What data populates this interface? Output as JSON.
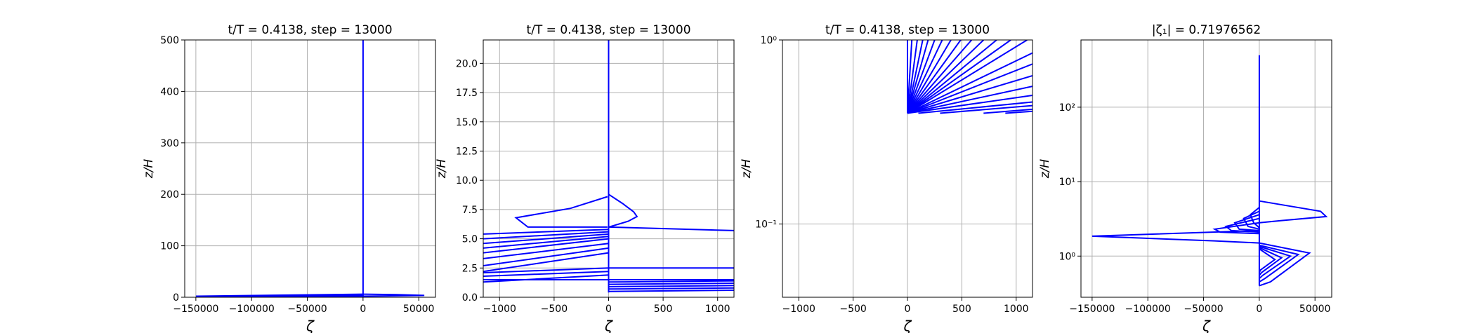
{
  "figure": {
    "background": "#ffffff",
    "line_color": "#0000ff",
    "grid_color": "#b0b0b0"
  },
  "chart_data": [
    {
      "type": "line",
      "title": "t/T = 0.4138, step = 13000",
      "xlabel": "ζ",
      "ylabel": "z/H",
      "xscale": "linear",
      "yscale": "linear",
      "xlim": [
        -160000,
        65000
      ],
      "ylim": [
        0,
        500
      ],
      "xticks": [
        -150000,
        -100000,
        -50000,
        0,
        50000
      ],
      "xtick_labels": [
        "−150000",
        "−100000",
        "−50000",
        "0",
        "50000"
      ],
      "yticks": [
        0,
        100,
        200,
        300,
        400,
        500
      ],
      "ytick_labels": [
        "0",
        "100",
        "200",
        "300",
        "400",
        "500"
      ],
      "grid": true,
      "series": [
        {
          "x": [
            0,
            0,
            0,
            0,
            0
          ],
          "y": [
            500,
            300,
            100,
            10,
            0.4
          ]
        },
        {
          "x": [
            0,
            -150000,
            -20000,
            0
          ],
          "y": [
            6,
            2.1,
            1.6,
            0.4
          ]
        },
        {
          "x": [
            0,
            30000,
            55000,
            0,
            0
          ],
          "y": [
            6,
            5.2,
            3.6,
            2.0,
            0.4
          ]
        },
        {
          "x": [
            0,
            -60000,
            0
          ],
          "y": [
            4,
            2.5,
            1.2
          ]
        }
      ]
    },
    {
      "type": "line",
      "title": "t/T = 0.4138, step = 13000",
      "xlabel": "ζ",
      "ylabel": "z/H",
      "xscale": "linear",
      "yscale": "linear",
      "xlim": [
        -1150,
        1150
      ],
      "ylim": [
        0,
        22
      ],
      "xticks": [
        -1000,
        -500,
        0,
        500,
        1000
      ],
      "xtick_labels": [
        "−1000",
        "−500",
        "0",
        "500",
        "1000"
      ],
      "yticks": [
        0,
        2.5,
        5,
        7.5,
        10,
        12.5,
        15,
        17.5,
        20
      ],
      "ytick_labels": [
        "0.0",
        "2.5",
        "5.0",
        "7.5",
        "10.0",
        "12.5",
        "15.0",
        "17.5",
        "20.0"
      ],
      "grid": true,
      "series": [
        {
          "x": [
            0,
            0,
            0,
            0,
            0,
            0
          ],
          "y": [
            22,
            15,
            10.5,
            8.6,
            6.0,
            0.4
          ]
        },
        {
          "x": [
            -10,
            -350,
            -850,
            -740,
            -10
          ],
          "y": [
            8.6,
            7.6,
            6.8,
            6.0,
            6.0
          ]
        },
        {
          "x": [
            0,
            130,
            230,
            260,
            180,
            0
          ],
          "y": [
            8.8,
            8.0,
            7.3,
            6.9,
            6.5,
            6.0
          ]
        },
        {
          "x": [
            0,
            1150
          ],
          "y": [
            6.0,
            5.7
          ]
        },
        {
          "x": [
            0,
            -1150
          ],
          "y": [
            5.8,
            5.4
          ]
        },
        {
          "x": [
            0,
            -1150
          ],
          "y": [
            5.6,
            5.0
          ]
        },
        {
          "x": [
            0,
            -1150
          ],
          "y": [
            5.4,
            4.6
          ]
        },
        {
          "x": [
            0,
            -1150
          ],
          "y": [
            5.2,
            4.2
          ]
        },
        {
          "x": [
            0,
            -1150
          ],
          "y": [
            5.0,
            3.8
          ]
        },
        {
          "x": [
            0,
            -1150
          ],
          "y": [
            4.6,
            3.3
          ]
        },
        {
          "x": [
            0,
            -1150
          ],
          "y": [
            4.2,
            2.7
          ]
        },
        {
          "x": [
            0,
            -1150
          ],
          "y": [
            3.8,
            2.2
          ]
        },
        {
          "x": [
            0,
            1150
          ],
          "y": [
            2.5,
            2.5
          ]
        },
        {
          "x": [
            0,
            -1150
          ],
          "y": [
            2.5,
            2.1
          ]
        },
        {
          "x": [
            0,
            -1150
          ],
          "y": [
            2.2,
            1.8
          ]
        },
        {
          "x": [
            -1150,
            0,
            1150
          ],
          "y": [
            1.5,
            1.5,
            1.5
          ]
        },
        {
          "x": [
            0,
            -1150
          ],
          "y": [
            1.9,
            1.3
          ]
        },
        {
          "x": [
            0,
            1150
          ],
          "y": [
            1.3,
            1.4
          ]
        },
        {
          "x": [
            0,
            1150
          ],
          "y": [
            1.1,
            1.2
          ]
        },
        {
          "x": [
            0,
            1150
          ],
          "y": [
            0.9,
            1.0
          ]
        },
        {
          "x": [
            0,
            1150
          ],
          "y": [
            0.7,
            0.8
          ]
        },
        {
          "x": [
            0,
            1150
          ],
          "y": [
            0.5,
            0.6
          ]
        }
      ]
    },
    {
      "type": "line",
      "title": "t/T = 0.4138, step = 13000",
      "xlabel": "ζ",
      "ylabel": "z/H",
      "xscale": "linear",
      "yscale": "log",
      "xlim": [
        -1150,
        1150
      ],
      "ylim": [
        0.04,
        1.0
      ],
      "xticks": [
        -1000,
        -500,
        0,
        500,
        1000
      ],
      "xtick_labels": [
        "−1000",
        "−500",
        "0",
        "500",
        "1000"
      ],
      "yticks": [
        0.1,
        1.0
      ],
      "ytick_labels": [
        "10⁻¹",
        "10⁰"
      ],
      "grid": true,
      "series": [
        {
          "x": [
            0,
            0
          ],
          "y": [
            0.4,
            1.0
          ]
        },
        {
          "x": [
            0,
            40
          ],
          "y": [
            0.4,
            1.0
          ]
        },
        {
          "x": [
            0,
            90
          ],
          "y": [
            0.4,
            1.0
          ]
        },
        {
          "x": [
            0,
            140
          ],
          "y": [
            0.4,
            1.0
          ]
        },
        {
          "x": [
            0,
            190
          ],
          "y": [
            0.4,
            1.0
          ]
        },
        {
          "x": [
            0,
            250
          ],
          "y": [
            0.4,
            1.0
          ]
        },
        {
          "x": [
            0,
            320
          ],
          "y": [
            0.4,
            1.0
          ]
        },
        {
          "x": [
            0,
            400
          ],
          "y": [
            0.4,
            1.0
          ]
        },
        {
          "x": [
            0,
            490
          ],
          "y": [
            0.4,
            1.0
          ]
        },
        {
          "x": [
            0,
            590
          ],
          "y": [
            0.4,
            1.0
          ]
        },
        {
          "x": [
            0,
            700
          ],
          "y": [
            0.4,
            1.0
          ]
        },
        {
          "x": [
            0,
            820
          ],
          "y": [
            0.4,
            1.0
          ]
        },
        {
          "x": [
            0,
            950
          ],
          "y": [
            0.4,
            1.0
          ]
        },
        {
          "x": [
            0,
            1100
          ],
          "y": [
            0.4,
            1.0
          ]
        },
        {
          "x": [
            0,
            1150
          ],
          "y": [
            0.4,
            0.85
          ]
        },
        {
          "x": [
            0,
            1150
          ],
          "y": [
            0.4,
            0.74
          ]
        },
        {
          "x": [
            0,
            1150
          ],
          "y": [
            0.4,
            0.64
          ]
        },
        {
          "x": [
            0,
            1150
          ],
          "y": [
            0.4,
            0.56
          ]
        },
        {
          "x": [
            0,
            1150
          ],
          "y": [
            0.4,
            0.5
          ]
        },
        {
          "x": [
            100,
            1150
          ],
          "y": [
            0.4,
            0.46
          ]
        },
        {
          "x": [
            300,
            1150
          ],
          "y": [
            0.4,
            0.44
          ]
        },
        {
          "x": [
            700,
            1150
          ],
          "y": [
            0.4,
            0.42
          ]
        },
        {
          "x": [
            900,
            1150
          ],
          "y": [
            0.4,
            0.41
          ]
        }
      ]
    },
    {
      "type": "line",
      "title": "|ζ₁| = 0.71976562",
      "xlabel": "ζ",
      "ylabel": "z/H",
      "xscale": "linear",
      "yscale": "log",
      "xlim": [
        -160000,
        65000
      ],
      "ylim": [
        0.28,
        800
      ],
      "xticks": [
        -150000,
        -100000,
        -50000,
        0,
        50000
      ],
      "xtick_labels": [
        "−150000",
        "−100000",
        "−50000",
        "0",
        "50000"
      ],
      "yticks": [
        1,
        10,
        100
      ],
      "ytick_labels": [
        "10⁰",
        "10¹",
        "10²"
      ],
      "grid": true,
      "series": [
        {
          "x": [
            0,
            0,
            0,
            0,
            0
          ],
          "y": [
            500,
            50,
            10,
            6,
            0.4
          ]
        },
        {
          "x": [
            0,
            -150000,
            -40000,
            0
          ],
          "y": [
            2.2,
            1.85,
            1.6,
            1.5
          ]
        },
        {
          "x": [
            0,
            55000,
            60000,
            20000,
            0
          ],
          "y": [
            5.5,
            4.0,
            3.4,
            3.0,
            2.8
          ]
        },
        {
          "x": [
            0,
            45000,
            10000,
            0
          ],
          "y": [
            1.5,
            1.1,
            0.45,
            0.4
          ]
        },
        {
          "x": [
            0,
            -40000,
            -35000,
            0
          ],
          "y": [
            2.8,
            2.3,
            2.1,
            2.0
          ]
        },
        {
          "x": [
            0,
            -30000,
            -25000,
            0
          ],
          "y": [
            3.2,
            2.5,
            2.2,
            2.1
          ]
        },
        {
          "x": [
            0,
            -22000,
            -18000,
            0
          ],
          "y": [
            3.6,
            2.8,
            2.3,
            2.2
          ]
        },
        {
          "x": [
            0,
            -14000,
            -10000,
            0
          ],
          "y": [
            4.0,
            3.2,
            2.5,
            2.3
          ]
        },
        {
          "x": [
            0,
            -8000,
            -5000,
            0
          ],
          "y": [
            4.5,
            3.6,
            2.8,
            2.4
          ]
        },
        {
          "x": [
            0,
            35000,
            5000,
            0
          ],
          "y": [
            1.4,
            1.05,
            0.5,
            0.45
          ]
        },
        {
          "x": [
            0,
            28000,
            3000,
            0
          ],
          "y": [
            1.35,
            1.0,
            0.55,
            0.5
          ]
        },
        {
          "x": [
            0,
            20000,
            2000,
            0
          ],
          "y": [
            1.3,
            0.95,
            0.6,
            0.55
          ]
        },
        {
          "x": [
            0,
            14000,
            1000,
            0
          ],
          "y": [
            1.25,
            0.9,
            0.65,
            0.6
          ]
        }
      ]
    }
  ]
}
